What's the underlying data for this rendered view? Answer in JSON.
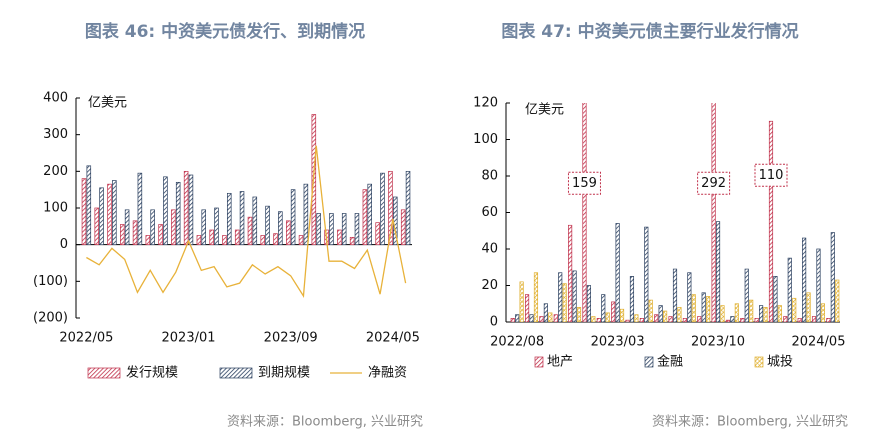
{
  "chart_data": [
    {
      "type": "bar",
      "title": "图表 46: 中资美元债发行、到期情况",
      "unit_label": "亿美元",
      "source": "资料来源：Bloomberg, 兴业研究",
      "categories": [
        "2022/05",
        null,
        null,
        null,
        null,
        null,
        null,
        null,
        "2023/01",
        null,
        null,
        null,
        null,
        null,
        null,
        null,
        "2023/09",
        null,
        null,
        null,
        null,
        null,
        null,
        null,
        "2024/05",
        null
      ],
      "series": [
        {
          "name": "发行规模",
          "type": "bar",
          "color": "#c0304a",
          "hatch": "diagonal",
          "values": [
            180,
            100,
            165,
            55,
            65,
            25,
            55,
            95,
            200,
            25,
            40,
            25,
            40,
            75,
            25,
            30,
            65,
            25,
            355,
            40,
            40,
            20,
            150,
            60,
            200,
            95
          ]
        },
        {
          "name": "到期规模",
          "type": "bar",
          "color": "#2a3f5f",
          "hatch": "diagonal",
          "values": [
            215,
            155,
            175,
            95,
            195,
            95,
            185,
            170,
            190,
            95,
            100,
            140,
            145,
            130,
            105,
            90,
            150,
            165,
            85,
            85,
            85,
            85,
            165,
            195,
            130,
            200
          ]
        },
        {
          "name": "净融资",
          "type": "line",
          "color": "#e8b23a",
          "values": [
            -35,
            -55,
            -10,
            -40,
            -130,
            -70,
            -130,
            -75,
            10,
            -70,
            -60,
            -115,
            -105,
            -55,
            -80,
            -60,
            -85,
            -140,
            270,
            -45,
            -45,
            -65,
            -15,
            -135,
            70,
            -105
          ]
        }
      ],
      "ylim": [
        -200,
        400
      ],
      "yticks": [
        {
          "value": -200,
          "label": "(200)"
        },
        {
          "value": -100,
          "label": "(100)"
        },
        0,
        100,
        200,
        300,
        400
      ],
      "negative_label_color": "#b22222",
      "grid": false,
      "legend": "bottom"
    },
    {
      "type": "bar",
      "title": "图表 47: 中资美元债主要行业发行情况",
      "unit_label": "亿美元",
      "source": "资料来源：Bloomberg, 兴业研究",
      "categories": [
        "2022/08",
        null,
        null,
        null,
        null,
        null,
        null,
        "2023/03",
        null,
        null,
        null,
        null,
        null,
        null,
        "2023/10",
        null,
        null,
        null,
        null,
        null,
        null,
        "2024/05",
        null
      ],
      "series": [
        {
          "name": "地产",
          "type": "bar",
          "color": "#c0304a",
          "hatch": "diagonal",
          "values": [
            2,
            15,
            3,
            4,
            53,
            159,
            2,
            11,
            1,
            2,
            4,
            3,
            2,
            3,
            292,
            1,
            2,
            2,
            110,
            3,
            2,
            3,
            2
          ],
          "value_labels": [
            null,
            null,
            null,
            null,
            null,
            "159",
            null,
            null,
            null,
            null,
            null,
            null,
            null,
            null,
            "292",
            null,
            null,
            null,
            "110",
            null,
            null,
            null,
            null
          ]
        },
        {
          "name": "金融",
          "type": "bar",
          "color": "#2a3f5f",
          "hatch": "diagonal",
          "values": [
            4,
            4,
            10,
            27,
            28,
            20,
            15,
            54,
            25,
            52,
            9,
            29,
            27,
            16,
            55,
            3,
            29,
            9,
            25,
            35,
            46,
            40,
            49
          ]
        },
        {
          "name": "城投",
          "type": "bar",
          "color": "#e0b030",
          "hatch": "cross",
          "values": [
            22,
            27,
            5,
            21,
            8,
            3,
            5,
            7,
            4,
            12,
            6,
            8,
            15,
            14,
            9,
            10,
            12,
            8,
            9,
            13,
            16,
            10,
            23
          ]
        }
      ],
      "ylim": [
        0,
        120
      ],
      "yticks": [
        0,
        20,
        40,
        60,
        80,
        100,
        120
      ],
      "grid": false,
      "legend": "bottom"
    }
  ]
}
